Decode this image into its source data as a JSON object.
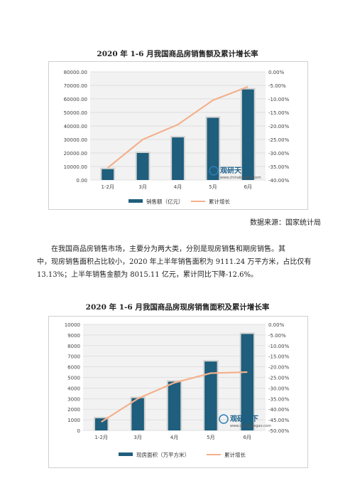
{
  "doc": {
    "source": "数据来源：国家统计局",
    "paragraph_line1": "在我国商品房销售市场，主要分为两大类，分别是现房销售和期房销售。其",
    "paragraph_line2": "中，现房销售面积占比较小，2020 年上半年销售面积为 9111.24 万平方米，占比仅有",
    "paragraph_line3": "13.13%；上半年销售金额为 8015.11 亿元，累计同比下降-12.6%。"
  },
  "watermark": {
    "text": "观研天下",
    "url": "www.chinabaogao.com"
  },
  "colors": {
    "bar": "#1f5e7c",
    "line": "#f4b18c",
    "grid": "#d9d9d9",
    "plot_bg": "#f2f2f2"
  },
  "chart_data": [
    {
      "type": "bar",
      "title": "2020 年 1-6 月我国商品房销售额及累计增长率",
      "categories": [
        "1-2月",
        "3月",
        "4月",
        "5月",
        "6月"
      ],
      "y_ticks": [
        "80000.00",
        "70000.00",
        "60000.00",
        "50000.00",
        "40000.00",
        "30000.00",
        "20000.00",
        "10000.00",
        "0.00"
      ],
      "y2_ticks": [
        "0.00%",
        "-5.00%",
        "-10.00%",
        "-15.00%",
        "-20.00%",
        "-25.00%",
        "-30.00%",
        "-35.00%",
        "-40.00%"
      ],
      "ylim": [
        0,
        80000
      ],
      "y2lim": [
        -40,
        0
      ],
      "series": [
        {
          "name": "销售额（亿元）",
          "kind": "bar",
          "values": [
            8000,
            20000,
            31500,
            46000,
            67000
          ]
        },
        {
          "name": "累计增长",
          "kind": "line",
          "axis": "right",
          "values": [
            -35.5,
            -25.0,
            -19.5,
            -10.5,
            -5.5
          ]
        }
      ]
    },
    {
      "type": "bar",
      "title": "2020 年 1-6 月我国商品房现房销售面积及累计增长率",
      "categories": [
        "1-2月",
        "3月",
        "4月",
        "5月",
        "6月"
      ],
      "y_ticks": [
        "10000",
        "9000",
        "8000",
        "7000",
        "6000",
        "5000",
        "4000",
        "3000",
        "2000",
        "1000",
        "0"
      ],
      "y2_ticks": [
        "0.00%",
        "-5.00%",
        "-10.00%",
        "-15.00%",
        "-20.00%",
        "-25.00%",
        "-30.00%",
        "-35.00%",
        "-40.00%",
        "-45.00%",
        "-50.00%"
      ],
      "ylim": [
        0,
        10000
      ],
      "y2lim": [
        -50,
        0
      ],
      "series": [
        {
          "name": "现房面积（万平方米）",
          "kind": "bar",
          "values": [
            1150,
            3050,
            4600,
            6500,
            9100
          ]
        },
        {
          "name": "累计增长",
          "kind": "line",
          "axis": "right",
          "values": [
            -46.0,
            -35.0,
            -27.5,
            -23.0,
            -22.5
          ]
        }
      ]
    }
  ]
}
